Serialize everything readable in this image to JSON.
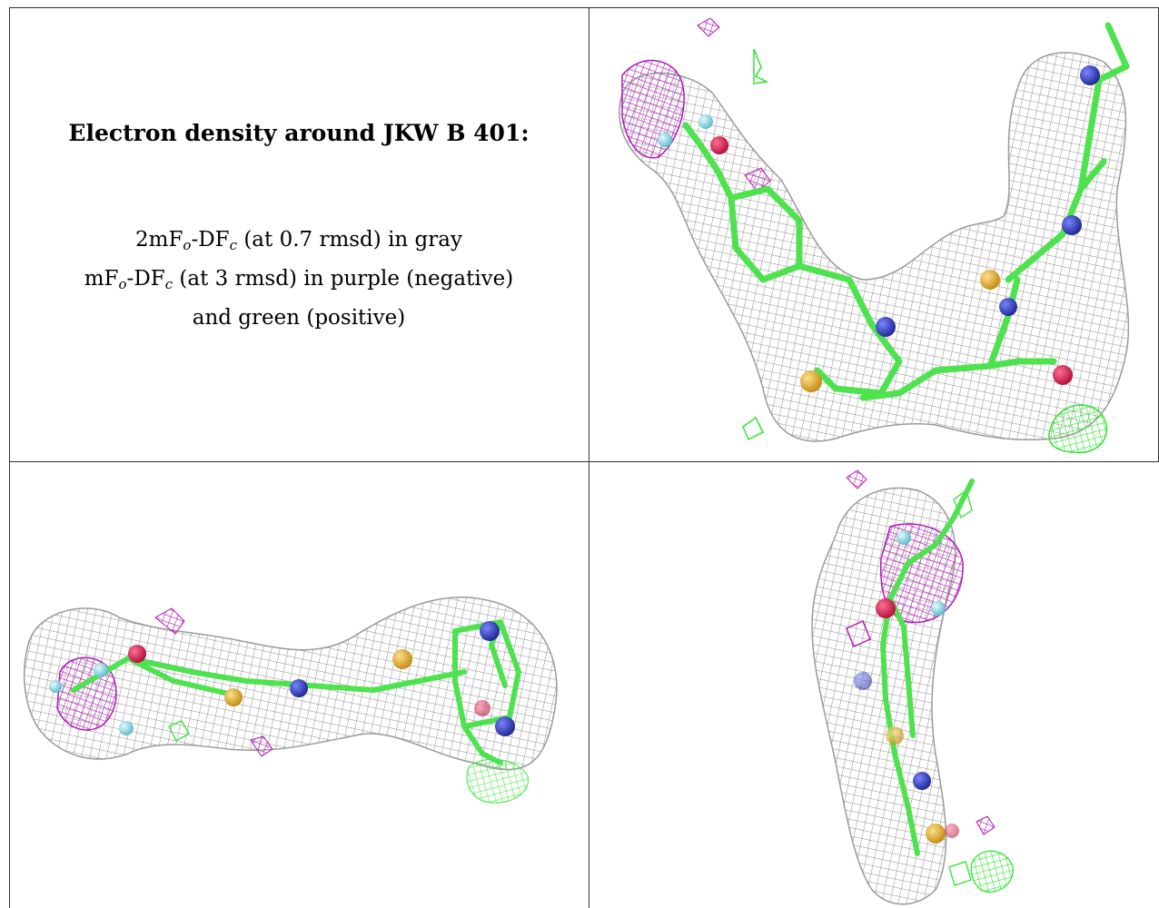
{
  "caption": {
    "title": "Electron density around JKW B 401:",
    "line1": {
      "a": "2mF",
      "sub1": "o",
      "b": "-DF",
      "sub2": "c",
      "c": " (at 0.7 rmsd) in gray"
    },
    "line2": {
      "a": "mF",
      "sub1": "o",
      "b": "-DF",
      "sub2": "c",
      "c": " (at 3 rmsd) in purple (negative)"
    },
    "line3": "and green (positive)"
  },
  "colors": {
    "mesh_2fofc": "#9a9a9a",
    "mesh_negative": "#b01ab8",
    "mesh_positive": "#2ee62e",
    "carbon": "#4fe24f",
    "nitrogen": "#2d36b8",
    "oxygen": "#e0174d",
    "sulfur": "#e6b22a",
    "fluorine": "#8fe3ef"
  }
}
